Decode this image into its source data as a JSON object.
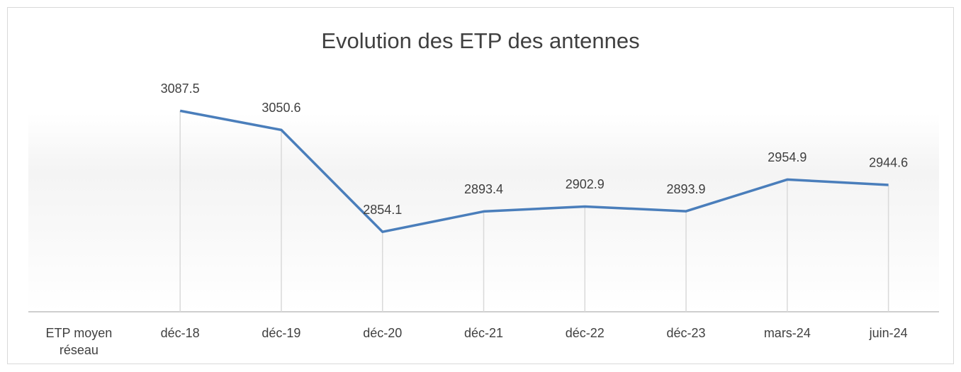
{
  "chart_data": {
    "type": "line",
    "title": "Evolution des ETP des antennes",
    "categories": [
      "ETP moyen réseau",
      "déc-18",
      "déc-19",
      "déc-20",
      "déc-21",
      "déc-22",
      "déc-23",
      "mars-24",
      "juin-24"
    ],
    "series": [
      {
        "color": "#4a7ebb",
        "values": [
          null,
          3087.5,
          3050.6,
          2854.1,
          2893.4,
          2902.9,
          2893.9,
          2954.9,
          2944.6
        ]
      }
    ],
    "ylim": [
      2700,
      3200
    ],
    "drop_lines": true
  }
}
